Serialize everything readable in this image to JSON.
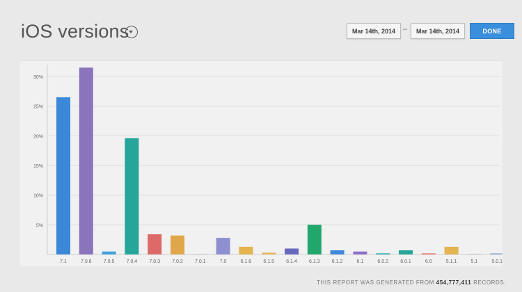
{
  "header": {
    "title": "iOS versions",
    "date_start": "Mar 14th, 2014",
    "date_separator": "–",
    "date_end": "Mar 14th, 2014",
    "done_label": "DONE",
    "done_color": "#3a8fdc",
    "title_dropdown_icon": "chevron-down-circle-icon"
  },
  "footer": {
    "prefix": "THIS REPORT WAS GENERATED FROM",
    "records": "454,777,411",
    "suffix": "RECORDS."
  },
  "chart_data": {
    "type": "bar",
    "title": "",
    "xlabel": "",
    "ylabel": "",
    "ylim": [
      0,
      32
    ],
    "yticks": [
      5,
      10,
      15,
      20,
      25,
      30
    ],
    "ytick_labels": [
      "5%",
      "10%",
      "15%",
      "20%",
      "25%",
      "30%"
    ],
    "grid": true,
    "categories": [
      "7.1",
      "7.0.6",
      "7.0.5",
      "7.0.4",
      "7.0.3",
      "7.0.2",
      "7.0.1",
      "7.0",
      "6.1.6",
      "6.1.5",
      "6.1.4",
      "6.1.3",
      "6.1.2",
      "6.1",
      "6.0.2",
      "6.0.1",
      "6.0",
      "5.1.1",
      "5.1",
      "5.0.1"
    ],
    "values": [
      26.5,
      31.5,
      0.5,
      19.6,
      3.4,
      3.2,
      0.05,
      2.8,
      1.3,
      0.3,
      1.0,
      5.0,
      0.7,
      0.5,
      0.2,
      0.7,
      0.2,
      1.3,
      0.05,
      0.2
    ],
    "colors": [
      "#3b87d8",
      "#8a74bc",
      "#3fa0dc",
      "#26a69a",
      "#dd6a68",
      "#e0a74a",
      "#c9c9c9",
      "#8e8fd0",
      "#e3b44f",
      "#e5b55a",
      "#6869be",
      "#21a66c",
      "#3f87d8",
      "#8a6fc6",
      "#35aab0",
      "#26a69a",
      "#e47d6c",
      "#e3b44f",
      "#c7c7c7",
      "#8fb2d8"
    ]
  }
}
